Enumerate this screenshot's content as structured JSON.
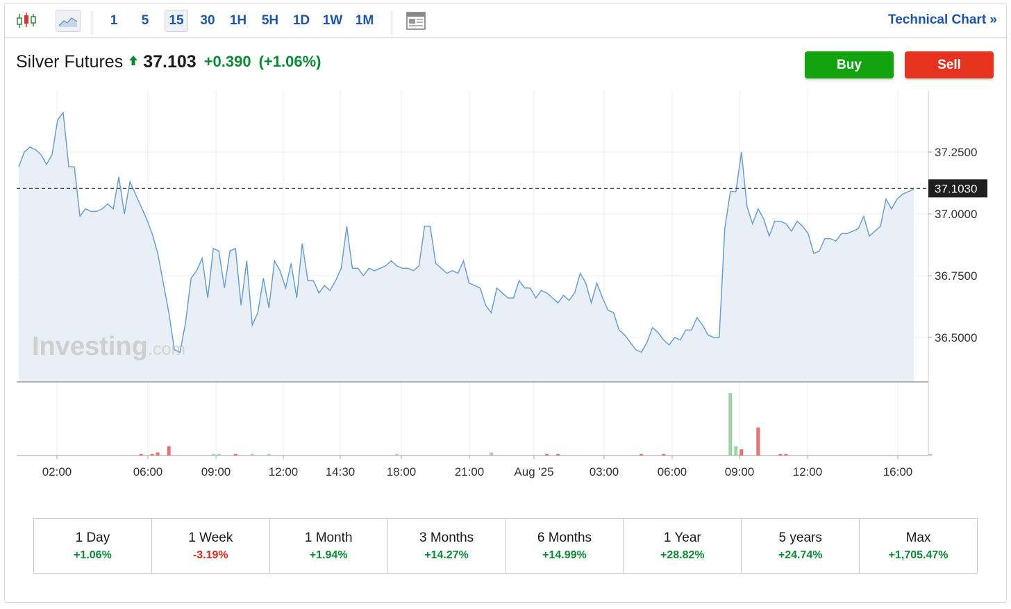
{
  "toolbar": {
    "chart_style_icons": [
      "candlestick-icon",
      "area-chart-icon"
    ],
    "intervals": [
      "1",
      "5",
      "15",
      "30",
      "1H",
      "5H",
      "1D",
      "1W",
      "1M"
    ],
    "active_interval": "15",
    "layout_icon": "news-layout-icon",
    "technical_chart_label": "Technical Chart »"
  },
  "quote": {
    "name": "Silver Futures",
    "direction": "up",
    "price": "37.103",
    "change": "+0.390",
    "change_pct": "(+1.06%)"
  },
  "actions": {
    "buy_label": "Buy",
    "sell_label": "Sell"
  },
  "watermark": {
    "brand": "Investing",
    "suffix": ".com"
  },
  "chart_data": {
    "type": "area",
    "title": "",
    "xlabel": "",
    "ylabel": "",
    "ylim": [
      36.32,
      37.5
    ],
    "y_ticks": [
      "37.2500",
      "37.0000",
      "36.7500",
      "36.5000"
    ],
    "last_price_label": "37.1030",
    "last_price": 37.103,
    "x_ticks": [
      "02:00",
      "06:00",
      "09:00",
      "12:00",
      "14:30",
      "18:00",
      "21:00",
      "Aug '25",
      "03:00",
      "06:00",
      "09:00",
      "12:00",
      "16:00"
    ],
    "series": [
      {
        "values": [
          37.19,
          37.25,
          37.27,
          37.26,
          37.24,
          37.2,
          37.24,
          37.38,
          37.41,
          37.19,
          37.19,
          36.99,
          37.02,
          37.01,
          37.01,
          37.02,
          37.04,
          37.02,
          37.15,
          37.0,
          37.13,
          37.08,
          37.03,
          36.98,
          36.92,
          36.84,
          36.72,
          36.6,
          36.45,
          36.44,
          36.56,
          36.74,
          36.77,
          36.82,
          36.66,
          36.86,
          36.85,
          36.7,
          36.85,
          36.86,
          36.63,
          36.81,
          36.55,
          36.6,
          36.74,
          36.62,
          36.81,
          36.77,
          36.7,
          36.8,
          36.66,
          36.88,
          36.73,
          36.73,
          36.68,
          36.71,
          36.69,
          36.73,
          36.78,
          36.95,
          36.78,
          36.78,
          36.75,
          36.78,
          36.77,
          36.78,
          36.79,
          36.81,
          36.79,
          36.78,
          36.78,
          36.77,
          36.79,
          36.95,
          36.95,
          36.8,
          36.78,
          36.76,
          36.77,
          36.76,
          36.81,
          36.72,
          36.71,
          36.7,
          36.63,
          36.6,
          36.7,
          36.68,
          36.66,
          36.66,
          36.73,
          36.7,
          36.7,
          36.66,
          36.69,
          36.68,
          36.66,
          36.64,
          36.67,
          36.65,
          36.68,
          36.76,
          36.72,
          36.64,
          36.72,
          36.66,
          36.61,
          36.6,
          36.53,
          36.51,
          36.48,
          36.45,
          36.44,
          36.48,
          36.54,
          36.52,
          36.49,
          36.47,
          36.5,
          36.49,
          36.53,
          36.53,
          36.58,
          36.55,
          36.51,
          36.5,
          36.5,
          36.94,
          37.09,
          37.09,
          37.25,
          37.03,
          36.96,
          37.02,
          36.98,
          36.91,
          36.97,
          36.97,
          36.96,
          36.93,
          36.97,
          36.95,
          36.92,
          36.84,
          36.85,
          36.9,
          36.9,
          36.89,
          36.92,
          36.92,
          36.93,
          36.94,
          36.99,
          36.91,
          36.93,
          36.95,
          37.06,
          37.02,
          37.06,
          37.08,
          37.09,
          37.1
        ]
      }
    ],
    "volume": [
      {
        "i": 22,
        "v": 1,
        "dir": "down"
      },
      {
        "i": 24,
        "v": 1,
        "dir": "down"
      },
      {
        "i": 25,
        "v": 2,
        "dir": "down"
      },
      {
        "i": 27,
        "v": 6,
        "dir": "down"
      },
      {
        "i": 35,
        "v": 1,
        "dir": "up"
      },
      {
        "i": 36,
        "v": 1,
        "dir": "up"
      },
      {
        "i": 39,
        "v": 1,
        "dir": "down"
      },
      {
        "i": 42,
        "v": 1,
        "dir": "up"
      },
      {
        "i": 45,
        "v": 1,
        "dir": "up"
      },
      {
        "i": 68,
        "v": 1,
        "dir": "up"
      },
      {
        "i": 85,
        "v": 2,
        "dir": "up"
      },
      {
        "i": 95,
        "v": 1,
        "dir": "down"
      },
      {
        "i": 97,
        "v": 1,
        "dir": "down"
      },
      {
        "i": 112,
        "v": 1,
        "dir": "down"
      },
      {
        "i": 116,
        "v": 1,
        "dir": "down"
      },
      {
        "i": 128,
        "v": 40,
        "dir": "up"
      },
      {
        "i": 129,
        "v": 6,
        "dir": "up"
      },
      {
        "i": 130,
        "v": 4,
        "dir": "down"
      },
      {
        "i": 133,
        "v": 18,
        "dir": "down"
      },
      {
        "i": 137,
        "v": 1,
        "dir": "down"
      },
      {
        "i": 138,
        "v": 1,
        "dir": "down"
      },
      {
        "i": 164,
        "v": 1,
        "dir": "up"
      }
    ],
    "grid": true,
    "legend": "none"
  },
  "performance": [
    {
      "label": "1 Day",
      "value": "+1.06%",
      "dir": "pos"
    },
    {
      "label": "1 Week",
      "value": "-3.19%",
      "dir": "neg"
    },
    {
      "label": "1 Month",
      "value": "+1.94%",
      "dir": "pos"
    },
    {
      "label": "3 Months",
      "value": "+14.27%",
      "dir": "pos"
    },
    {
      "label": "6 Months",
      "value": "+14.99%",
      "dir": "pos"
    },
    {
      "label": "1 Year",
      "value": "+28.82%",
      "dir": "pos"
    },
    {
      "label": "5 years",
      "value": "+24.74%",
      "dir": "pos"
    },
    {
      "label": "Max",
      "value": "+1,705.47%",
      "dir": "pos"
    }
  ],
  "colors": {
    "accent": "#1d56a8",
    "positive": "#0b8a35",
    "negative": "#d62a1f",
    "buy": "#12a30f",
    "sell": "#e5331f",
    "line": "#6a9fcf",
    "area": "#e8eff6"
  }
}
